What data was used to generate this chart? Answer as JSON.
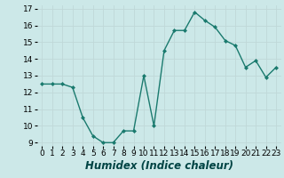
{
  "x": [
    0,
    1,
    2,
    3,
    4,
    5,
    6,
    7,
    8,
    9,
    10,
    11,
    12,
    13,
    14,
    15,
    16,
    17,
    18,
    19,
    20,
    21,
    22,
    23
  ],
  "y": [
    12.5,
    12.5,
    12.5,
    12.3,
    10.5,
    9.4,
    9.0,
    9.0,
    9.7,
    9.7,
    13.0,
    10.0,
    14.5,
    15.7,
    15.7,
    16.8,
    16.3,
    15.9,
    15.1,
    14.8,
    13.5,
    13.9,
    12.9,
    13.5
  ],
  "xlabel": "Humidex (Indice chaleur)",
  "xlim": [
    -0.5,
    23.5
  ],
  "ylim": [
    8.8,
    17.2
  ],
  "yticks": [
    9,
    10,
    11,
    12,
    13,
    14,
    15,
    16,
    17
  ],
  "xticks": [
    0,
    1,
    2,
    3,
    4,
    5,
    6,
    7,
    8,
    9,
    10,
    11,
    12,
    13,
    14,
    15,
    16,
    17,
    18,
    19,
    20,
    21,
    22,
    23
  ],
  "line_color": "#1a7a6e",
  "marker": "D",
  "marker_size": 2.0,
  "bg_color": "#cce8e8",
  "grid_color": "#c0d8d8",
  "axis_fontsize": 7.5,
  "tick_fontsize": 6.5,
  "xlabel_fontsize": 8.5
}
